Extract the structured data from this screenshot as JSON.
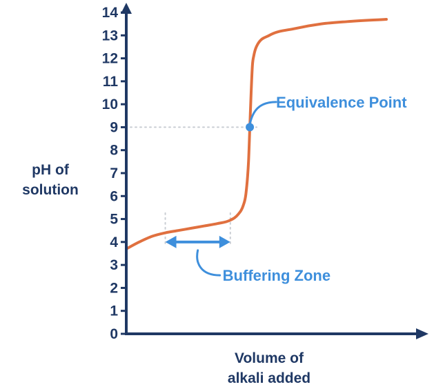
{
  "chart_data": {
    "type": "line",
    "title": "",
    "xlabel_lines": [
      "Volume of",
      "alkali added"
    ],
    "ylabel_lines": [
      "pH of",
      "solution"
    ],
    "ylim": [
      0,
      14
    ],
    "yticks": [
      "0",
      "1",
      "2",
      "3",
      "4",
      "5",
      "6",
      "7",
      "8",
      "9",
      "10",
      "11",
      "12",
      "13",
      "14"
    ],
    "grid": false,
    "legend": "none",
    "series": [
      {
        "color": "#e0703f",
        "x": [
          0,
          5,
          10,
          15,
          20,
          25,
          30,
          35,
          40,
          43,
          45,
          46,
          47,
          47.5,
          48,
          48.5,
          49,
          50,
          55,
          65,
          75,
          85,
          100
        ],
        "y": [
          3.7,
          4.0,
          4.25,
          4.4,
          4.5,
          4.6,
          4.7,
          4.8,
          4.95,
          5.2,
          5.6,
          6.1,
          7.5,
          9.0,
          10.5,
          11.7,
          12.1,
          12.5,
          13.0,
          13.3,
          13.5,
          13.6,
          13.7
        ]
      }
    ],
    "annotations": [
      {
        "text": "Equivalence Point",
        "x": 47.5,
        "y": 9,
        "color": "#3e8fdc"
      },
      {
        "text": "Buffering Zone",
        "x_range": [
          15,
          40
        ],
        "y": 4,
        "color": "#3e8fdc"
      }
    ],
    "colors": {
      "axis": "#1f3864",
      "curve": "#e0703f",
      "annotation": "#3e8fdc",
      "guide": "#c9cdd3"
    }
  }
}
